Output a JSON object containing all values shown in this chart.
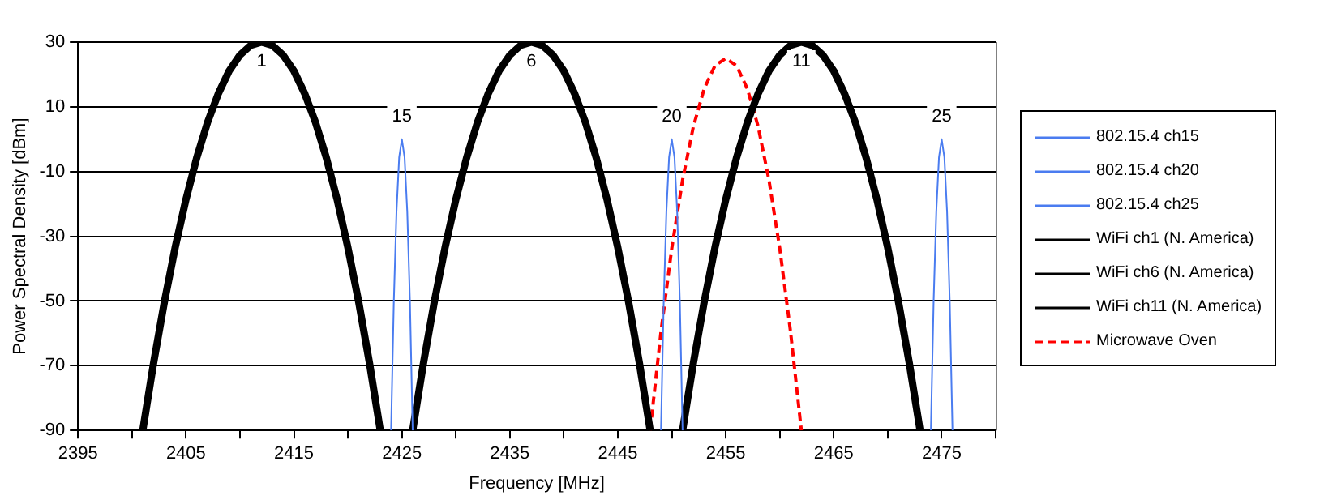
{
  "chart_data": {
    "type": "line",
    "xlabel": "Frequency [MHz]",
    "ylabel": "Power Spectral Density [dBm]",
    "xlim": [
      2395,
      2480
    ],
    "ylim": [
      -90,
      30
    ],
    "xticks": [
      2395,
      {
        "value": 2400,
        "label": null
      },
      2405,
      {
        "value": 2410,
        "label": null
      },
      2415,
      {
        "value": 2420,
        "label": null
      },
      2425,
      {
        "value": 2430,
        "label": null
      },
      2435,
      {
        "value": 2440,
        "label": null
      },
      2445,
      {
        "value": 2450,
        "label": null
      },
      2455,
      {
        "value": 2460,
        "label": null
      },
      2465,
      {
        "value": 2470,
        "label": null
      },
      2475,
      {
        "value": 2480,
        "label": null
      }
    ],
    "yticks": [
      -90,
      -70,
      -50,
      -30,
      -10,
      10,
      30
    ],
    "grid": "y",
    "legend": "right",
    "marker": "none",
    "series": [
      {
        "name": "802.15.4 ch15",
        "color": "#4a7cf0",
        "line_style": "solid",
        "x": [
          2424,
          2424.25,
          2424.5,
          2424.75,
          2425,
          2425.25,
          2425.5,
          2425.75,
          2426
        ],
        "values": [
          -90,
          -50.6,
          -22.5,
          -5.6,
          0,
          -5.6,
          -22.5,
          -50.6,
          -90
        ]
      },
      {
        "name": "802.15.4 ch20",
        "color": "#4a7cf0",
        "line_style": "solid",
        "x": [
          2449,
          2449.25,
          2449.5,
          2449.75,
          2450,
          2450.25,
          2450.5,
          2450.75,
          2451
        ],
        "values": [
          -90,
          -50.6,
          -22.5,
          -5.6,
          0,
          -5.6,
          -22.5,
          -50.6,
          -90
        ]
      },
      {
        "name": "802.15.4 ch25",
        "color": "#4a7cf0",
        "line_style": "solid",
        "x": [
          2474,
          2474.25,
          2474.5,
          2474.75,
          2475,
          2475.25,
          2475.5,
          2475.75,
          2476
        ],
        "values": [
          -90,
          -50.6,
          -22.5,
          -5.6,
          0,
          -5.6,
          -22.5,
          -50.6,
          -90
        ]
      },
      {
        "name": "WiFi ch1 (N. America)",
        "color": "#000000",
        "line_style": "solid",
        "x": [
          2401,
          2402,
          2403,
          2404,
          2405,
          2406,
          2407,
          2408,
          2409,
          2410,
          2411,
          2412,
          2413,
          2414,
          2415,
          2416,
          2417,
          2418,
          2419,
          2420,
          2421,
          2422,
          2423
        ],
        "values": [
          -90,
          -69.2,
          -50.3,
          -33.5,
          -18.6,
          -5.7,
          5.2,
          14.1,
          21.1,
          26,
          29,
          30,
          29,
          26,
          21.1,
          14.1,
          5.2,
          -5.7,
          -18.6,
          -33.5,
          -50.3,
          -69.2,
          -90
        ]
      },
      {
        "name": "WiFi ch6 (N. America)",
        "color": "#000000",
        "line_style": "solid",
        "x": [
          2426,
          2427,
          2428,
          2429,
          2430,
          2431,
          2432,
          2433,
          2434,
          2435,
          2436,
          2437,
          2438,
          2439,
          2440,
          2441,
          2442,
          2443,
          2444,
          2445,
          2446,
          2447,
          2448
        ],
        "values": [
          -90,
          -69.2,
          -50.3,
          -33.5,
          -18.6,
          -5.7,
          5.2,
          14.1,
          21.1,
          26,
          29,
          30,
          29,
          26,
          21.1,
          14.1,
          5.2,
          -5.7,
          -18.6,
          -33.5,
          -50.3,
          -69.2,
          -90
        ]
      },
      {
        "name": "WiFi ch11 (N. America)",
        "color": "#000000",
        "line_style": "solid",
        "x": [
          2451,
          2452,
          2453,
          2454,
          2455,
          2456,
          2457,
          2458,
          2459,
          2460,
          2461,
          2462,
          2463,
          2464,
          2465,
          2466,
          2467,
          2468,
          2469,
          2470,
          2471,
          2472,
          2473
        ],
        "values": [
          -90,
          -69.2,
          -50.3,
          -33.5,
          -18.6,
          -5.7,
          5.2,
          14.1,
          21.1,
          26,
          29,
          30,
          29,
          26,
          21.1,
          14.1,
          5.2,
          -5.7,
          -18.6,
          -33.5,
          -50.3,
          -69.2,
          -90
        ]
      },
      {
        "name": "Microwave Oven",
        "color": "#ff0000",
        "line_style": "dashed",
        "x": [
          2448,
          2449,
          2450,
          2451,
          2452,
          2453,
          2454,
          2455,
          2456,
          2457,
          2458,
          2459,
          2460,
          2461,
          2462
        ],
        "values": [
          -90,
          -59.5,
          -33.7,
          -12.6,
          3.9,
          15.6,
          22.7,
          25,
          22.7,
          15.6,
          3.9,
          -12.6,
          -33.7,
          -59.5,
          -90
        ]
      }
    ],
    "annotations": [
      {
        "text": "1",
        "x": 2412,
        "y": 24
      },
      {
        "text": "6",
        "x": 2437,
        "y": 24
      },
      {
        "text": "11",
        "x": 2462,
        "y": 24
      },
      {
        "text": "15",
        "x": 2425,
        "y": 7
      },
      {
        "text": "20",
        "x": 2450,
        "y": 7
      },
      {
        "text": "25",
        "x": 2475,
        "y": 7
      }
    ]
  }
}
